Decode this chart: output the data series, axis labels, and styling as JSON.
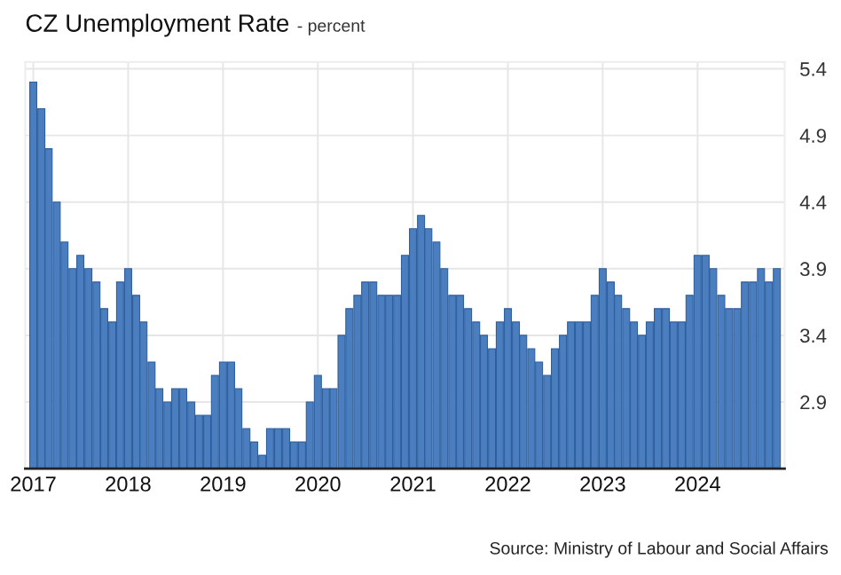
{
  "chart_data": {
    "type": "bar",
    "title": "CZ Unemployment Rate",
    "subtitle": "- percent",
    "x": [
      "2017-01",
      "2017-02",
      "2017-03",
      "2017-04",
      "2017-05",
      "2017-06",
      "2017-07",
      "2017-08",
      "2017-09",
      "2017-10",
      "2017-11",
      "2017-12",
      "2018-01",
      "2018-02",
      "2018-03",
      "2018-04",
      "2018-05",
      "2018-06",
      "2018-07",
      "2018-08",
      "2018-09",
      "2018-10",
      "2018-11",
      "2018-12",
      "2019-01",
      "2019-02",
      "2019-03",
      "2019-04",
      "2019-05",
      "2019-06",
      "2019-07",
      "2019-08",
      "2019-09",
      "2019-10",
      "2019-11",
      "2019-12",
      "2020-01",
      "2020-02",
      "2020-03",
      "2020-04",
      "2020-05",
      "2020-06",
      "2020-07",
      "2020-08",
      "2020-09",
      "2020-10",
      "2020-11",
      "2020-12",
      "2021-01",
      "2021-02",
      "2021-03",
      "2021-04",
      "2021-05",
      "2021-06",
      "2021-07",
      "2021-08",
      "2021-09",
      "2021-10",
      "2021-11",
      "2021-12",
      "2022-01",
      "2022-02",
      "2022-03",
      "2022-04",
      "2022-05",
      "2022-06",
      "2022-07",
      "2022-08",
      "2022-09",
      "2022-10",
      "2022-11",
      "2022-12",
      "2023-01",
      "2023-02",
      "2023-03",
      "2023-04",
      "2023-05",
      "2023-06",
      "2023-07",
      "2023-08",
      "2023-09",
      "2023-10",
      "2023-11",
      "2023-12",
      "2024-01",
      "2024-02",
      "2024-03",
      "2024-04",
      "2024-05",
      "2024-06",
      "2024-07",
      "2024-08",
      "2024-09",
      "2024-10",
      "2024-11"
    ],
    "values": [
      5.3,
      5.1,
      4.8,
      4.4,
      4.1,
      3.9,
      4.0,
      3.9,
      3.8,
      3.6,
      3.5,
      3.8,
      3.9,
      3.7,
      3.5,
      3.2,
      3.0,
      2.9,
      3.0,
      3.0,
      2.9,
      2.8,
      2.8,
      3.1,
      3.2,
      3.2,
      3.0,
      2.7,
      2.6,
      2.5,
      2.7,
      2.7,
      2.7,
      2.6,
      2.6,
      2.9,
      3.1,
      3.0,
      3.0,
      3.4,
      3.6,
      3.7,
      3.8,
      3.8,
      3.7,
      3.7,
      3.7,
      4.0,
      4.2,
      4.3,
      4.2,
      4.1,
      3.9,
      3.7,
      3.7,
      3.6,
      3.5,
      3.4,
      3.3,
      3.5,
      3.6,
      3.5,
      3.4,
      3.3,
      3.2,
      3.1,
      3.3,
      3.4,
      3.5,
      3.5,
      3.5,
      3.7,
      3.9,
      3.8,
      3.7,
      3.6,
      3.5,
      3.4,
      3.5,
      3.6,
      3.6,
      3.5,
      3.5,
      3.7,
      4.0,
      4.0,
      3.9,
      3.7,
      3.6,
      3.6,
      3.8,
      3.8,
      3.9,
      3.8,
      3.9
    ],
    "color": "#4a7ebe",
    "xlim": [
      "2016-12-01",
      "2024-12-01"
    ],
    "xticks": [
      "2017",
      "2018",
      "2019",
      "2020",
      "2021",
      "2022",
      "2023",
      "2024"
    ],
    "ylim": [
      2.4,
      5.45
    ],
    "yticks": [
      2.9,
      3.4,
      3.9,
      4.4,
      4.9,
      5.4
    ],
    "grid": true,
    "legend": false,
    "annotations": [
      "Source: Ministry of Labour and Social Affairs"
    ]
  }
}
